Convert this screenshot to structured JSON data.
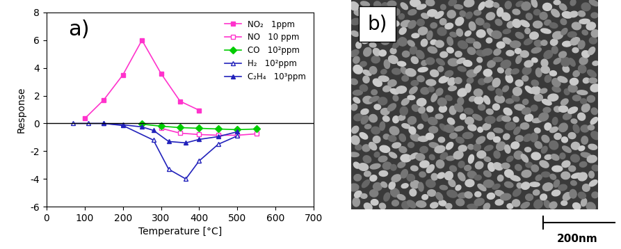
{
  "chart_data": {
    "type": "line",
    "annotations": [
      "a)"
    ],
    "x_label": "Temperature [°C]",
    "y_label": "Response",
    "xlim": [
      0,
      700
    ],
    "xticks": [
      0,
      100,
      200,
      300,
      400,
      500,
      600,
      700
    ],
    "ylim": [
      -6,
      8
    ],
    "yticks": [
      -6,
      -4,
      -2,
      0,
      2,
      4,
      6,
      8
    ],
    "legend": "upper right",
    "series": [
      {
        "name": "NO₂   1ppm",
        "color": "#ff33cc",
        "marker": "square_filled",
        "line_style": "solid",
        "x": [
          100,
          150,
          200,
          250,
          300,
          350,
          400
        ],
        "values": [
          0.35,
          1.7,
          3.5,
          6.0,
          3.6,
          1.6,
          0.95
        ]
      },
      {
        "name": "NO   10 ppm",
        "color": "#ff33cc",
        "marker": "square_open",
        "line_style": "solid",
        "x": [
          300,
          350,
          400,
          450,
          500,
          550
        ],
        "values": [
          -0.35,
          -0.7,
          -0.8,
          -0.85,
          -0.85,
          -0.75
        ]
      },
      {
        "name": "CO   10²ppm",
        "color": "#00cc00",
        "marker": "diamond",
        "line_style": "solid",
        "x": [
          250,
          300,
          350,
          400,
          450,
          500,
          550
        ],
        "values": [
          -0.05,
          -0.2,
          -0.3,
          -0.35,
          -0.4,
          -0.45,
          -0.4
        ]
      },
      {
        "name": "H₂   10²ppm",
        "color": "#2222bb",
        "marker": "triangle_open",
        "line_style": "solid",
        "x": [
          70,
          110,
          150,
          200,
          280,
          320,
          365,
          400,
          450,
          500
        ],
        "values": [
          0,
          0,
          0,
          -0.15,
          -1.2,
          -3.3,
          -4.0,
          -2.7,
          -1.5,
          -0.9
        ]
      },
      {
        "name": "C₂H₄   10³ppm",
        "color": "#2222bb",
        "marker": "triangle_filled",
        "line_style": "solid",
        "x": [
          150,
          200,
          250,
          280,
          320,
          365,
          400,
          450,
          500
        ],
        "values": [
          0,
          -0.1,
          -0.25,
          -0.5,
          -1.3,
          -1.4,
          -1.15,
          -0.95,
          -0.6
        ]
      }
    ]
  },
  "image_panel": {
    "label": "b)",
    "scale_bar": "200nm"
  }
}
